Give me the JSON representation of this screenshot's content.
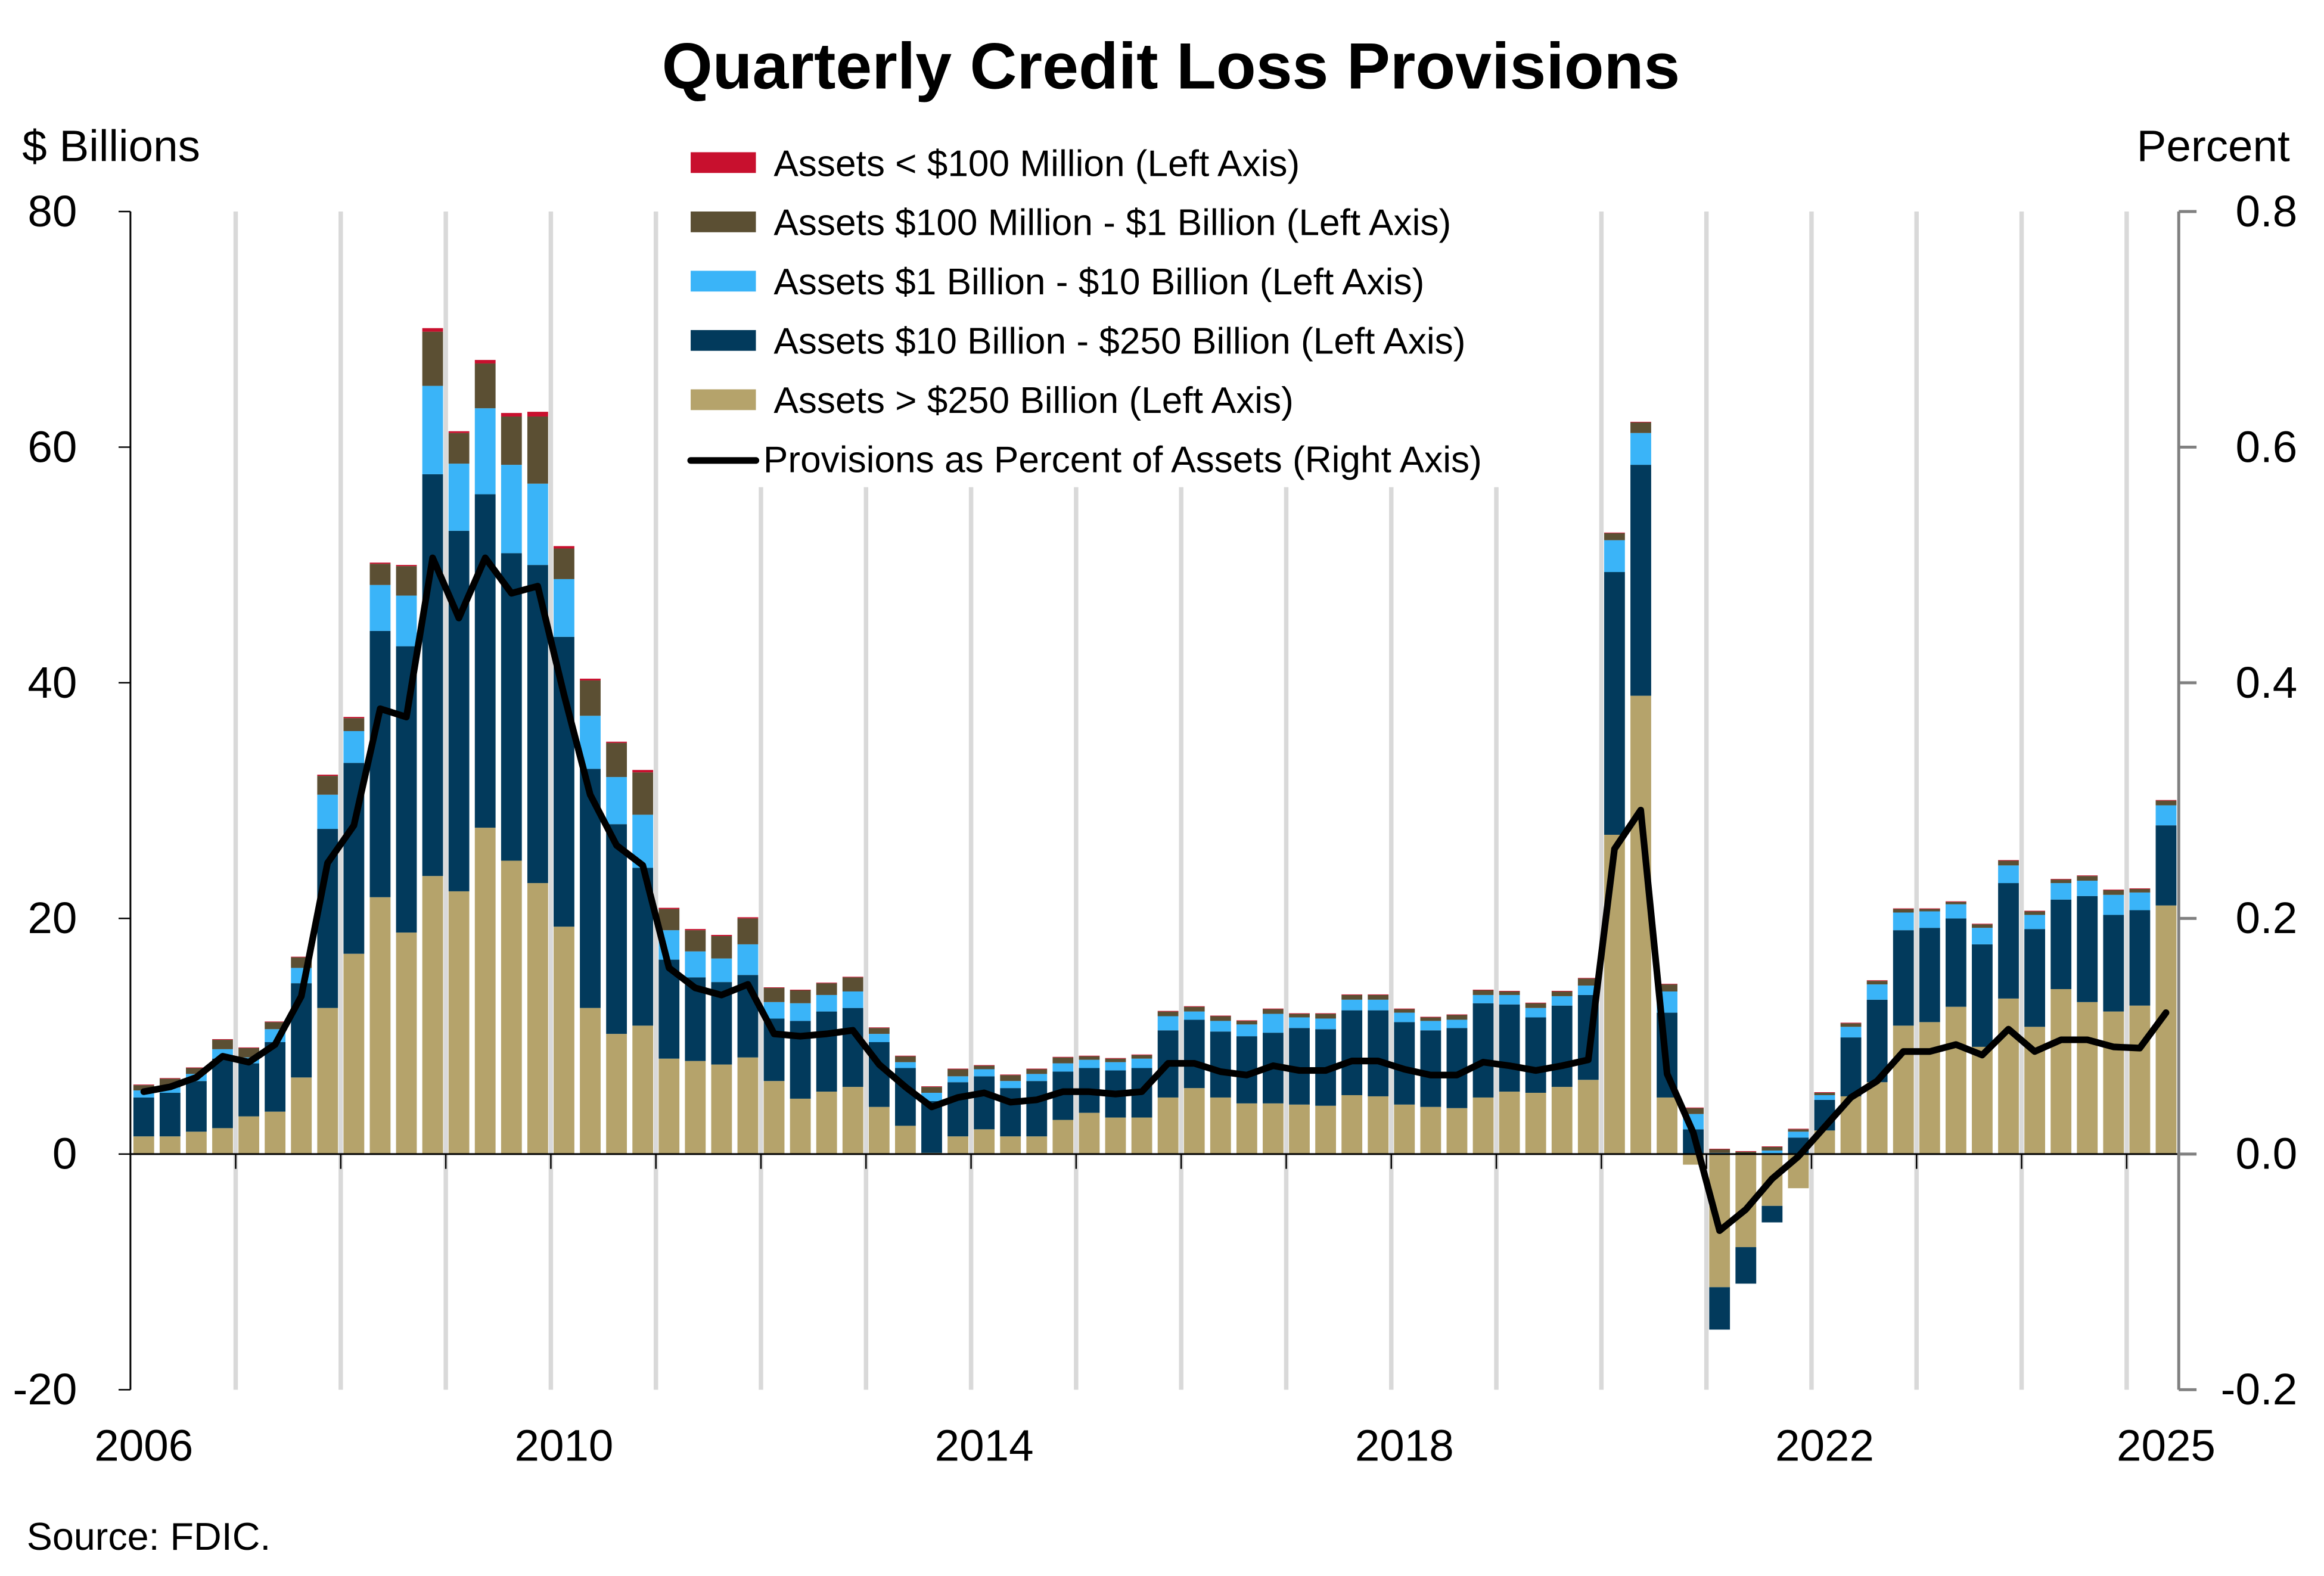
{
  "chart_data": {
    "type": "bar",
    "subtype": "stacked-bar-with-line",
    "title": "Quarterly Credit Loss Provisions",
    "ylabel_left": "$ Billions",
    "ylabel_right": "Percent",
    "ylim_left": [
      -20,
      80
    ],
    "ylim_right": [
      -0.2,
      0.8
    ],
    "yticks_left": [
      "80",
      "60",
      "40",
      "20",
      "0",
      "-20"
    ],
    "yticks_right": [
      "0.8",
      "0.6",
      "0.4",
      "0.2",
      "0.0",
      "-0.2"
    ],
    "yticks_left_values": [
      80,
      60,
      40,
      20,
      0,
      -20
    ],
    "xtick_labels": [
      {
        "label": "2006",
        "quarter_index": 0
      },
      {
        "label": "2010",
        "quarter_index": 16
      },
      {
        "label": "2014",
        "quarter_index": 32
      },
      {
        "label": "2018",
        "quarter_index": 48
      },
      {
        "label": "2022",
        "quarter_index": 64
      },
      {
        "label": "2025",
        "quarter_index": 77
      }
    ],
    "x_start": "2006Q1",
    "x_end": "2025Q2",
    "quarters_count": 78,
    "grid": "vertical gridlines at each year",
    "legend_position": "top-center",
    "source": "Source: FDIC.",
    "series": [
      {
        "name": "Assets > $250 Billion (Left Axis)",
        "color": "#b5a36b",
        "axis": "left",
        "values": [
          1.5,
          1.5,
          1.9,
          2.2,
          3.2,
          3.6,
          6.5,
          12.4,
          17.0,
          21.8,
          18.8,
          23.6,
          22.3,
          27.7,
          24.9,
          23.0,
          19.3,
          12.4,
          10.2,
          10.9,
          8.1,
          7.9,
          7.6,
          8.2,
          6.2,
          4.7,
          5.3,
          5.7,
          4.0,
          2.4,
          0.1,
          1.5,
          2.1,
          1.5,
          1.5,
          2.9,
          3.5,
          3.1,
          3.1,
          4.8,
          5.6,
          4.8,
          4.3,
          4.3,
          4.2,
          4.1,
          5.0,
          4.9,
          4.2,
          4.0,
          3.9,
          4.8,
          5.3,
          5.2,
          5.7,
          6.3,
          27.1,
          38.9,
          4.8,
          -0.9,
          -11.3,
          -7.9,
          -4.4,
          -2.9,
          2.0,
          4.9,
          6.1,
          10.9,
          11.2,
          12.5,
          9.1,
          13.2,
          10.8,
          14.0,
          12.9,
          12.1,
          12.6,
          21.1
        ]
      },
      {
        "name": "Assets  $10 Billion - $250 Billion (Left Axis)",
        "color": "#023a5c",
        "axis": "left",
        "values": [
          3.3,
          3.7,
          4.3,
          5.9,
          4.5,
          5.9,
          8.0,
          15.2,
          16.2,
          22.6,
          24.3,
          34.1,
          30.6,
          28.3,
          26.1,
          27.0,
          24.6,
          20.3,
          17.8,
          13.4,
          8.4,
          7.1,
          7.0,
          7.0,
          5.3,
          6.6,
          6.8,
          6.7,
          5.5,
          4.9,
          4.4,
          4.6,
          4.5,
          4.1,
          4.7,
          4.1,
          3.8,
          4.0,
          4.2,
          5.7,
          5.8,
          5.6,
          5.7,
          6.0,
          6.5,
          6.5,
          7.2,
          7.3,
          7.0,
          6.5,
          6.8,
          8.0,
          7.4,
          6.4,
          6.9,
          7.2,
          22.3,
          19.6,
          7.2,
          2.1,
          -3.6,
          -3.1,
          -1.4,
          1.4,
          2.6,
          5.0,
          7.0,
          8.1,
          8.0,
          7.5,
          8.7,
          9.8,
          8.3,
          7.6,
          9.0,
          8.2,
          8.1,
          6.8
        ]
      },
      {
        "name": "Assets  $1 Billion - $10 Billion (Left Axis)",
        "color": "#3ab4f8",
        "axis": "left",
        "values": [
          0.6,
          0.45,
          0.6,
          0.8,
          0.5,
          1.1,
          1.3,
          2.9,
          2.7,
          3.9,
          4.3,
          7.5,
          5.7,
          7.3,
          7.5,
          6.9,
          4.9,
          4.5,
          4.0,
          4.5,
          2.5,
          2.2,
          2.0,
          2.6,
          1.4,
          1.5,
          1.4,
          1.4,
          0.7,
          0.5,
          0.7,
          0.5,
          0.6,
          0.6,
          0.6,
          0.7,
          0.7,
          0.7,
          0.8,
          1.2,
          0.7,
          0.9,
          1.0,
          1.6,
          0.9,
          0.9,
          0.9,
          0.9,
          0.8,
          0.8,
          0.7,
          0.7,
          0.8,
          0.8,
          0.8,
          0.8,
          2.7,
          2.7,
          1.8,
          1.3,
          0.1,
          0.05,
          0.3,
          0.5,
          0.4,
          0.9,
          1.3,
          1.5,
          1.4,
          1.2,
          1.4,
          1.5,
          1.2,
          1.4,
          1.3,
          1.7,
          1.5,
          1.7
        ]
      },
      {
        "name": "Assets  $100 Million - $1 Billion (Left Axis)",
        "color": "#5b4f33",
        "axis": "left",
        "values": [
          0.45,
          0.75,
          0.5,
          0.8,
          0.8,
          0.6,
          0.9,
          1.6,
          1.1,
          1.8,
          2.5,
          4.6,
          2.6,
          3.8,
          4.1,
          5.7,
          2.6,
          3.0,
          2.9,
          3.6,
          1.8,
          1.8,
          1.9,
          2.2,
          1.2,
          1.1,
          1.0,
          1.2,
          0.5,
          0.5,
          0.5,
          0.6,
          0.3,
          0.5,
          0.4,
          0.5,
          0.3,
          0.3,
          0.3,
          0.4,
          0.4,
          0.4,
          0.3,
          0.4,
          0.3,
          0.4,
          0.4,
          0.4,
          0.3,
          0.3,
          0.4,
          0.4,
          0.3,
          0.4,
          0.4,
          0.6,
          0.6,
          0.9,
          0.6,
          0.5,
          0.3,
          0.15,
          0.3,
          0.2,
          0.2,
          0.3,
          0.3,
          0.3,
          0.2,
          0.2,
          0.3,
          0.4,
          0.3,
          0.3,
          0.4,
          0.4,
          0.3,
          0.4
        ]
      },
      {
        "name": "Assets < $100 Million (Left Axis)",
        "color": "#c8102e",
        "axis": "left",
        "values": [
          0.05,
          0.05,
          0.05,
          0.05,
          0.05,
          0.05,
          0.05,
          0.1,
          0.1,
          0.1,
          0.1,
          0.3,
          0.15,
          0.3,
          0.3,
          0.4,
          0.2,
          0.15,
          0.1,
          0.2,
          0.1,
          0.1,
          0.1,
          0.1,
          0.05,
          0.05,
          0.05,
          0.05,
          0.05,
          0.05,
          0.05,
          0.05,
          0.05,
          0.05,
          0.05,
          0.05,
          0.05,
          0.05,
          0.05,
          0.05,
          0.05,
          0.05,
          0.05,
          0.05,
          0.05,
          0.05,
          0.05,
          0.05,
          0.05,
          0.05,
          0.05,
          0.05,
          0.05,
          0.05,
          0.05,
          0.05,
          0.05,
          0.05,
          0.05,
          0.05,
          0.05,
          0.05,
          0.05,
          0.05,
          0.05,
          0.05,
          0.05,
          0.05,
          0.05,
          0.05,
          0.05,
          0.05,
          0.05,
          0.05,
          0.05,
          0.05,
          0.05,
          0.05
        ]
      },
      {
        "name": "Provisions as Percent of Assets (Right Axis)",
        "color": "#000000",
        "axis": "right",
        "type": "line",
        "values": [
          0.053,
          0.057,
          0.065,
          0.083,
          0.078,
          0.093,
          0.134,
          0.247,
          0.279,
          0.378,
          0.371,
          0.506,
          0.455,
          0.506,
          0.476,
          0.482,
          0.39,
          0.305,
          0.262,
          0.245,
          0.158,
          0.141,
          0.135,
          0.144,
          0.102,
          0.1,
          0.102,
          0.105,
          0.076,
          0.057,
          0.04,
          0.048,
          0.052,
          0.044,
          0.046,
          0.053,
          0.053,
          0.051,
          0.053,
          0.077,
          0.077,
          0.07,
          0.067,
          0.075,
          0.071,
          0.071,
          0.079,
          0.079,
          0.072,
          0.067,
          0.067,
          0.078,
          0.075,
          0.071,
          0.075,
          0.08,
          0.259,
          0.292,
          0.068,
          0.018,
          -0.065,
          -0.047,
          -0.021,
          -0.002,
          0.023,
          0.048,
          0.062,
          0.087,
          0.087,
          0.093,
          0.084,
          0.106,
          0.087,
          0.097,
          0.097,
          0.091,
          0.09,
          0.12
        ]
      }
    ]
  },
  "legend": {
    "items": [
      {
        "label": "Assets < $100 Million (Left Axis)",
        "color": "#c8102e",
        "icon": "swatch"
      },
      {
        "label": "Assets  $100 Million - $1 Billion (Left Axis)",
        "color": "#5b4f33",
        "icon": "swatch"
      },
      {
        "label": "Assets  $1 Billion - $10 Billion (Left Axis)",
        "color": "#3ab4f8",
        "icon": "swatch"
      },
      {
        "label": "Assets  $10 Billion - $250 Billion (Left Axis)",
        "color": "#023a5c",
        "icon": "swatch"
      },
      {
        "label": "Assets > $250 Billion (Left Axis)",
        "color": "#b5a36b",
        "icon": "swatch"
      },
      {
        "label": "Provisions as Percent of Assets (Right Axis)",
        "color": "#000000",
        "icon": "line"
      }
    ]
  },
  "colors": {
    "gridline": "#d9d9d9",
    "axis": "#000000",
    "right_axis": "#808080"
  }
}
